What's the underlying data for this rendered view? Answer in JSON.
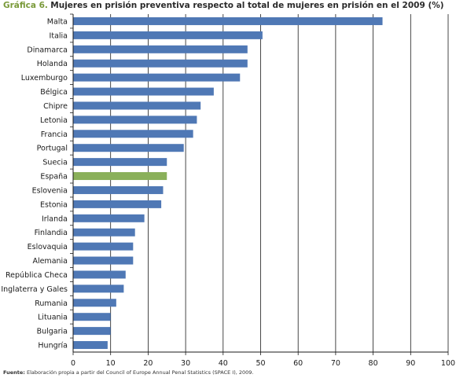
{
  "title_prefix": "Gráfica 6.",
  "title_text": "Mujeres en prisión preventiva respecto al total de mujeres en prisión en el 2009 (%)",
  "source_label": "Fuente:",
  "source_text": "Elaboración propia a partir del Council of Europe Annual Penal Statistics (SPACE I), 2009.",
  "colors": {
    "bar": "#4f78b5",
    "highlight": "#8ab05a",
    "title_accent": "#7a9a3a"
  },
  "chart_data": {
    "type": "bar",
    "orientation": "horizontal",
    "title": "Mujeres en prisión preventiva respecto al total de mujeres en prisión en el 2009 (%)",
    "categories": [
      "Malta",
      "Italia",
      "Dinamarca",
      "Holanda",
      "Luxemburgo",
      "Bélgica",
      "Chipre",
      "Letonia",
      "Francia",
      "Portugal",
      "Suecia",
      "España",
      "Eslovenia",
      "Estonia",
      "Irlanda",
      "Finlandia",
      "Eslovaquia",
      "Alemania",
      "República Checa",
      "Inglaterra y Gales",
      "Rumania",
      "Lituania",
      "Bulgaria",
      "Hungría"
    ],
    "values": [
      82.5,
      50.5,
      46.5,
      46.5,
      44.5,
      37.5,
      34,
      33,
      32,
      29.5,
      25,
      25,
      24,
      23.5,
      19,
      16.5,
      16,
      16,
      14,
      13.5,
      11.5,
      10,
      10,
      9.2
    ],
    "highlight_category": "España",
    "xlim": [
      0,
      100
    ],
    "xticks": [
      0,
      10,
      20,
      30,
      40,
      50,
      60,
      70,
      80,
      90,
      100
    ],
    "grid": true,
    "xlabel": "",
    "ylabel": ""
  }
}
